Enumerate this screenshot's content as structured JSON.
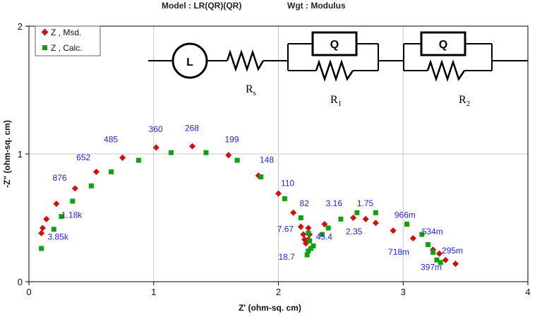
{
  "chart_data": {
    "type": "scatter",
    "title": "Model : LR(QR)(QR)",
    "weighting": "Wgt : Modulus",
    "xlabel": "Z' (ohm-sq. cm)",
    "ylabel": "-Z\" (ohm-sq. cm)",
    "xlim": [
      0,
      4
    ],
    "ylim": [
      0,
      2
    ],
    "x_ticks": [
      "0",
      "1",
      "2",
      "3",
      "4"
    ],
    "y_ticks": [
      "0",
      "1",
      "2"
    ],
    "grid": true,
    "legend": {
      "placement": "top-left",
      "entries": [
        "Z , Msd.",
        "Z , Calc."
      ]
    },
    "series": [
      {
        "name": "Z , Msd.",
        "color": "#d01010",
        "marker": "diamond",
        "points": [
          [
            0.1,
            0.38
          ],
          [
            0.11,
            0.42
          ],
          [
            0.14,
            0.49
          ],
          [
            0.22,
            0.61
          ],
          [
            0.37,
            0.73
          ],
          [
            0.54,
            0.86
          ],
          [
            0.75,
            0.97
          ],
          [
            1.02,
            1.05
          ],
          [
            1.31,
            1.06
          ],
          [
            1.6,
            0.99
          ],
          [
            1.84,
            0.83
          ],
          [
            2.0,
            0.69
          ],
          [
            2.12,
            0.54
          ],
          [
            2.18,
            0.43
          ],
          [
            2.2,
            0.37
          ],
          [
            2.21,
            0.33
          ],
          [
            2.22,
            0.3
          ],
          [
            2.24,
            0.33
          ],
          [
            2.25,
            0.37
          ],
          [
            2.24,
            0.42
          ],
          [
            2.37,
            0.45
          ],
          [
            2.6,
            0.5
          ],
          [
            2.7,
            0.49
          ],
          [
            2.78,
            0.46
          ],
          [
            2.92,
            0.4
          ],
          [
            3.08,
            0.34
          ],
          [
            3.24,
            0.25
          ],
          [
            3.29,
            0.22
          ],
          [
            3.34,
            0.17
          ],
          [
            3.42,
            0.14
          ]
        ]
      },
      {
        "name": "Z , Calc.",
        "color": "#10a010",
        "marker": "square",
        "points": [
          [
            0.1,
            0.26
          ],
          [
            0.2,
            0.41
          ],
          [
            0.26,
            0.51
          ],
          [
            0.35,
            0.63
          ],
          [
            0.5,
            0.75
          ],
          [
            0.66,
            0.86
          ],
          [
            0.88,
            0.95
          ],
          [
            1.14,
            1.01
          ],
          [
            1.42,
            1.01
          ],
          [
            1.67,
            0.95
          ],
          [
            1.86,
            0.82
          ],
          [
            2.05,
            0.65
          ],
          [
            2.18,
            0.5
          ],
          [
            2.24,
            0.38
          ],
          [
            2.25,
            0.32
          ],
          [
            2.26,
            0.26
          ],
          [
            2.24,
            0.24
          ],
          [
            2.23,
            0.21
          ],
          [
            2.28,
            0.28
          ],
          [
            2.35,
            0.37
          ],
          [
            2.4,
            0.42
          ],
          [
            2.5,
            0.49
          ],
          [
            2.63,
            0.54
          ],
          [
            2.78,
            0.54
          ],
          [
            3.03,
            0.45
          ],
          [
            3.15,
            0.37
          ],
          [
            3.2,
            0.29
          ],
          [
            3.24,
            0.23
          ],
          [
            3.27,
            0.17
          ],
          [
            3.3,
            0.15
          ]
        ]
      }
    ],
    "annotations": [
      {
        "text": "360",
        "x": 0.96,
        "y": 1.17
      },
      {
        "text": "268",
        "x": 1.25,
        "y": 1.18
      },
      {
        "text": "485",
        "x": 0.6,
        "y": 1.09
      },
      {
        "text": "199",
        "x": 1.57,
        "y": 1.09
      },
      {
        "text": "652",
        "x": 0.38,
        "y": 0.95
      },
      {
        "text": "148",
        "x": 1.85,
        "y": 0.93
      },
      {
        "text": "876",
        "x": 0.19,
        "y": 0.79
      },
      {
        "text": "110",
        "x": 2.02,
        "y": 0.75
      },
      {
        "text": "82",
        "x": 2.17,
        "y": 0.59
      },
      {
        "text": "3.16",
        "x": 2.38,
        "y": 0.59
      },
      {
        "text": "1.75",
        "x": 2.63,
        "y": 0.59
      },
      {
        "text": "1.18k",
        "x": 0.26,
        "y": 0.5
      },
      {
        "text": "966m",
        "x": 2.93,
        "y": 0.5
      },
      {
        "text": "7.67",
        "x": 1.99,
        "y": 0.39
      },
      {
        "text": "2.35",
        "x": 2.54,
        "y": 0.37
      },
      {
        "text": "534m",
        "x": 3.15,
        "y": 0.37
      },
      {
        "text": "45.4",
        "x": 2.3,
        "y": 0.33
      },
      {
        "text": "3.85k",
        "x": 0.15,
        "y": 0.33
      },
      {
        "text": "718m",
        "x": 2.88,
        "y": 0.21
      },
      {
        "text": "295m",
        "x": 3.31,
        "y": 0.22
      },
      {
        "text": "18.7",
        "x": 2.0,
        "y": 0.17
      },
      {
        "text": "397m",
        "x": 3.14,
        "y": 0.09
      }
    ],
    "circuit": {
      "inductor_label": "L",
      "cpe_label": "Q",
      "resistors": [
        {
          "main": "R",
          "sub": "s"
        },
        {
          "main": "R",
          "sub": "1"
        },
        {
          "main": "R",
          "sub": "2"
        }
      ]
    }
  }
}
